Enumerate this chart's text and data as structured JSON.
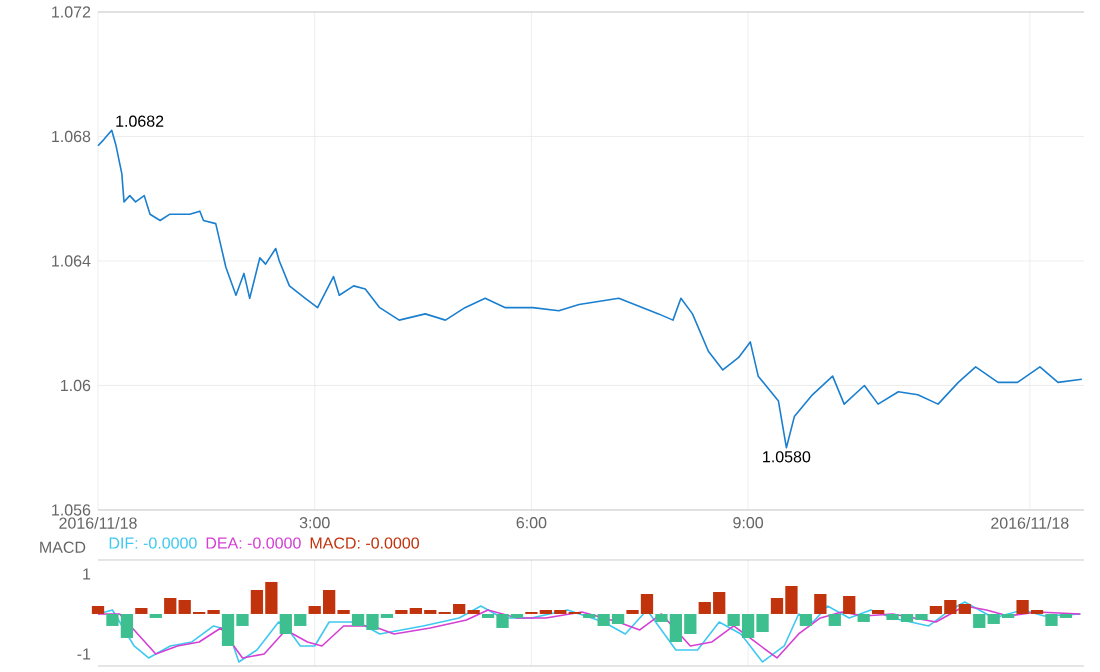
{
  "chart_data": [
    {
      "type": "line",
      "color": "#1a7fcf",
      "x": [
        0,
        0.08,
        0.19,
        0.25,
        0.33,
        0.36,
        0.44,
        0.52,
        0.64,
        0.72,
        0.86,
        0.99,
        1.27,
        1.41,
        1.46,
        1.63,
        1.77,
        1.91,
        2.02,
        2.1,
        2.24,
        2.32,
        2.46,
        2.51,
        2.65,
        2.87,
        3.04,
        3.26,
        3.34,
        3.54,
        3.7,
        3.9,
        4.17,
        4.53,
        4.81,
        5.08,
        5.36,
        5.64,
        6.02,
        6.38,
        6.66,
        7.21,
        7.76,
        7.96,
        8.07,
        8.23,
        8.45,
        8.65,
        8.87,
        9.03,
        9.14,
        9.42,
        9.53,
        9.64,
        9.89,
        10.17,
        10.33,
        10.61,
        10.8,
        11.08,
        11.35,
        11.63,
        11.91,
        12.15,
        12.46,
        12.73,
        13.04,
        13.29,
        13.62
      ],
      "values": [
        1.0677,
        1.0679,
        1.0682,
        1.0677,
        1.0668,
        1.0659,
        1.0661,
        1.0659,
        1.0661,
        1.0655,
        1.0653,
        1.0655,
        1.0655,
        1.0656,
        1.0653,
        1.0652,
        1.0638,
        1.0629,
        1.0636,
        1.0628,
        1.0641,
        1.0639,
        1.0644,
        1.064,
        1.0632,
        1.0628,
        1.0625,
        1.0635,
        1.0629,
        1.0632,
        1.0631,
        1.0625,
        1.0621,
        1.0623,
        1.0621,
        1.0625,
        1.0628,
        1.0625,
        1.0625,
        1.0624,
        1.0626,
        1.0628,
        1.0623,
        1.0621,
        1.0628,
        1.0623,
        1.0611,
        1.0605,
        1.0609,
        1.0614,
        1.0603,
        1.0595,
        1.058,
        1.059,
        1.0597,
        1.0603,
        1.0594,
        1.06,
        1.0594,
        1.0598,
        1.0597,
        1.0594,
        1.0601,
        1.0606,
        1.0601,
        1.0601,
        1.0606,
        1.0601,
        1.0602
      ],
      "xlim": [
        0,
        13.65
      ],
      "ylim": [
        1.056,
        1.072
      ],
      "xticks": [
        {
          "value": 0,
          "label": "2016/11/18"
        },
        {
          "value": 3,
          "label": "3:00"
        },
        {
          "value": 6,
          "label": "6:00"
        },
        {
          "value": 9,
          "label": "9:00"
        },
        {
          "value": 12.9,
          "label": "2016/11/18"
        }
      ],
      "yticks": [
        1.056,
        1.06,
        1.064,
        1.068,
        1.072
      ],
      "grid": true,
      "annotations": [
        {
          "text": "1.0682",
          "x": 0.19,
          "y": 1.0682
        },
        {
          "text": "1.0580",
          "x": 9.53,
          "y": 1.058
        }
      ]
    },
    {
      "type": "bar",
      "ylabel": "MACD",
      "legend": "top left",
      "tick_labels": "y",
      "grid": "x",
      "xlim": [
        0,
        13.65
      ],
      "ylim": [
        -1.3,
        1.35
      ],
      "xticks": [
        {
          "value": 3,
          "label": null
        },
        {
          "value": 6,
          "label": null
        },
        {
          "value": 9,
          "label": null
        }
      ],
      "yticks": [
        -1,
        1
      ],
      "series": [
        {
          "name": "DIF: -0.0000",
          "type": "line",
          "color": "#3fc8f0",
          "x": [
            0,
            0.2,
            0.5,
            0.7,
            1.0,
            1.3,
            1.6,
            1.8,
            1.95,
            2.2,
            2.5,
            2.6,
            2.8,
            3.0,
            3.2,
            3.6,
            3.9,
            4.5,
            5.0,
            5.3,
            5.6,
            6.0,
            6.5,
            7.0,
            7.3,
            7.6,
            8.0,
            8.3,
            8.6,
            8.9,
            9.2,
            9.5,
            9.7,
            9.9,
            10.1,
            10.4,
            10.7,
            11.0,
            11.5,
            11.8,
            12.0,
            12.4,
            12.8,
            13.1,
            13.6
          ],
          "values": [
            0,
            0.1,
            -0.8,
            -1.1,
            -0.8,
            -0.7,
            -0.3,
            -0.4,
            -1.2,
            -0.9,
            -0.2,
            -0.3,
            -0.8,
            -0.8,
            -0.2,
            -0.2,
            -0.5,
            -0.3,
            -0.1,
            0.2,
            -0.1,
            -0.1,
            0.1,
            -0.2,
            -0.5,
            0.1,
            -0.9,
            -0.9,
            -0.2,
            -0.5,
            -1.2,
            -0.8,
            0,
            -0.2,
            0.2,
            -0.1,
            0.1,
            -0.1,
            -0.3,
            0.1,
            0.3,
            -0.1,
            0.1,
            -0.05,
            0
          ]
        },
        {
          "name": "DEA: -0.0000",
          "type": "line",
          "color": "#d43fd4",
          "x": [
            0,
            0.3,
            0.6,
            0.8,
            1.1,
            1.4,
            1.7,
            2.0,
            2.3,
            2.6,
            2.9,
            3.1,
            3.4,
            3.8,
            4.1,
            4.6,
            5.1,
            5.4,
            5.8,
            6.2,
            6.7,
            7.2,
            7.5,
            7.8,
            8.2,
            8.5,
            8.8,
            9.1,
            9.4,
            9.7,
            10.0,
            10.3,
            10.6,
            11.0,
            11.6,
            12.0,
            12.3,
            12.6,
            13.0,
            13.6
          ],
          "values": [
            0,
            0,
            -0.6,
            -1.0,
            -0.8,
            -0.7,
            -0.35,
            -1.1,
            -1.0,
            -0.4,
            -0.7,
            -0.8,
            -0.3,
            -0.3,
            -0.5,
            -0.35,
            -0.15,
            0.1,
            -0.1,
            -0.1,
            0.05,
            -0.2,
            -0.4,
            0,
            -0.8,
            -0.7,
            -0.3,
            -0.7,
            -1.1,
            -0.5,
            -0.1,
            0.05,
            -0.05,
            0,
            -0.2,
            0.2,
            0.1,
            -0.05,
            0.05,
            0
          ]
        },
        {
          "name": "MACD: -0.0000",
          "type": "bar",
          "x": [
            0,
            0.2,
            0.4,
            0.6,
            0.8,
            1.0,
            1.2,
            1.4,
            1.6,
            1.8,
            2.0,
            2.2,
            2.4,
            2.6,
            2.8,
            3.0,
            3.2,
            3.4,
            3.6,
            3.8,
            4.0,
            4.2,
            4.4,
            4.6,
            4.8,
            5.0,
            5.2,
            5.4,
            5.6,
            5.8,
            6.0,
            6.2,
            6.4,
            6.6,
            6.8,
            7.0,
            7.2,
            7.4,
            7.6,
            7.8,
            8.0,
            8.2,
            8.4,
            8.6,
            8.8,
            9.0,
            9.2,
            9.4,
            9.6,
            9.8,
            10.0,
            10.2,
            10.4,
            10.6,
            10.8,
            11.0,
            11.2,
            11.4,
            11.6,
            11.8,
            12.0,
            12.2,
            12.4,
            12.6,
            12.8,
            13.0,
            13.2,
            13.4
          ],
          "values": [
            0.2,
            -0.3,
            -0.6,
            0.15,
            -0.1,
            0.4,
            0.35,
            0.05,
            0.1,
            -0.8,
            -0.3,
            0.6,
            0.8,
            -0.5,
            -0.3,
            0.2,
            0.6,
            0.1,
            -0.3,
            -0.4,
            -0.1,
            0.1,
            0.15,
            0.1,
            0.05,
            0.25,
            0.1,
            -0.1,
            -0.35,
            -0.1,
            0.05,
            0.1,
            0.1,
            0.05,
            -0.1,
            -0.3,
            -0.25,
            0.1,
            0.5,
            -0.2,
            -0.7,
            -0.5,
            0.3,
            0.55,
            -0.3,
            -0.6,
            -0.45,
            0.4,
            0.7,
            -0.3,
            0.5,
            -0.3,
            0.45,
            -0.2,
            0.1,
            -0.15,
            -0.2,
            -0.15,
            0.2,
            0.35,
            0.25,
            -0.35,
            -0.25,
            -0.1,
            0.35,
            0.1,
            -0.3,
            -0.1
          ],
          "colors": [
            "#c0330d",
            "#3dbf8f",
            "#3dbf8f",
            "#c0330d",
            "#3dbf8f",
            "#c0330d",
            "#c0330d",
            "#c0330d",
            "#c0330d",
            "#3dbf8f",
            "#3dbf8f",
            "#c0330d",
            "#c0330d",
            "#3dbf8f",
            "#3dbf8f",
            "#c0330d",
            "#c0330d",
            "#c0330d",
            "#3dbf8f",
            "#3dbf8f",
            "#3dbf8f",
            "#c0330d",
            "#c0330d",
            "#c0330d",
            "#c0330d",
            "#c0330d",
            "#c0330d",
            "#3dbf8f",
            "#3dbf8f",
            "#3dbf8f",
            "#c0330d",
            "#c0330d",
            "#c0330d",
            "#c0330d",
            "#3dbf8f",
            "#3dbf8f",
            "#3dbf8f",
            "#c0330d",
            "#c0330d",
            "#3dbf8f",
            "#3dbf8f",
            "#3dbf8f",
            "#c0330d",
            "#c0330d",
            "#3dbf8f",
            "#3dbf8f",
            "#3dbf8f",
            "#c0330d",
            "#c0330d",
            "#3dbf8f",
            "#c0330d",
            "#3dbf8f",
            "#c0330d",
            "#3dbf8f",
            "#c0330d",
            "#3dbf8f",
            "#3dbf8f",
            "#3dbf8f",
            "#c0330d",
            "#c0330d",
            "#c0330d",
            "#3dbf8f",
            "#3dbf8f",
            "#3dbf8f",
            "#c0330d",
            "#c0330d",
            "#3dbf8f",
            "#3dbf8f"
          ]
        }
      ]
    }
  ]
}
